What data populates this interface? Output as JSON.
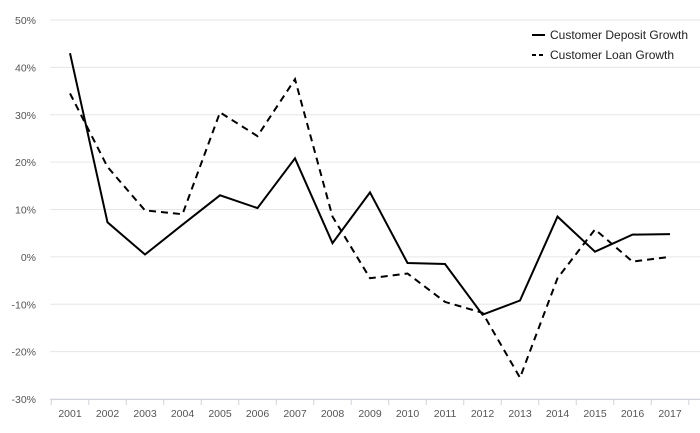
{
  "chart_data": {
    "type": "line",
    "title": "",
    "xlabel": "",
    "ylabel": "",
    "categories": [
      "2001",
      "2002",
      "2003",
      "2004",
      "2005",
      "2006",
      "2007",
      "2008",
      "2009",
      "2010",
      "2011",
      "2012",
      "2013",
      "2014",
      "2015",
      "2016",
      "2017"
    ],
    "y_ticks": [
      "50%",
      "40%",
      "30%",
      "20%",
      "10%",
      "0%",
      "-10%",
      "-20%",
      "-30%"
    ],
    "ylim": [
      -30,
      50
    ],
    "grid": true,
    "legend_position": "top-right",
    "series": [
      {
        "name": "Customer Deposit Growth",
        "style": "solid",
        "color": "#000000",
        "values": [
          43,
          7.3,
          0.5,
          6.8,
          13,
          10.3,
          20.8,
          2.9,
          13.6,
          -1.3,
          -1.5,
          -12.2,
          -9.2,
          8.5,
          1.1,
          4.7,
          4.8
        ]
      },
      {
        "name": "Customer Loan Growth",
        "style": "dashed",
        "color": "#000000",
        "values": [
          34.5,
          19,
          9.8,
          9,
          30.5,
          25.5,
          37.5,
          8.5,
          -4.5,
          -3.5,
          -9.5,
          -11.8,
          -25.5,
          -4.5,
          5.8,
          -1,
          0
        ]
      }
    ]
  }
}
